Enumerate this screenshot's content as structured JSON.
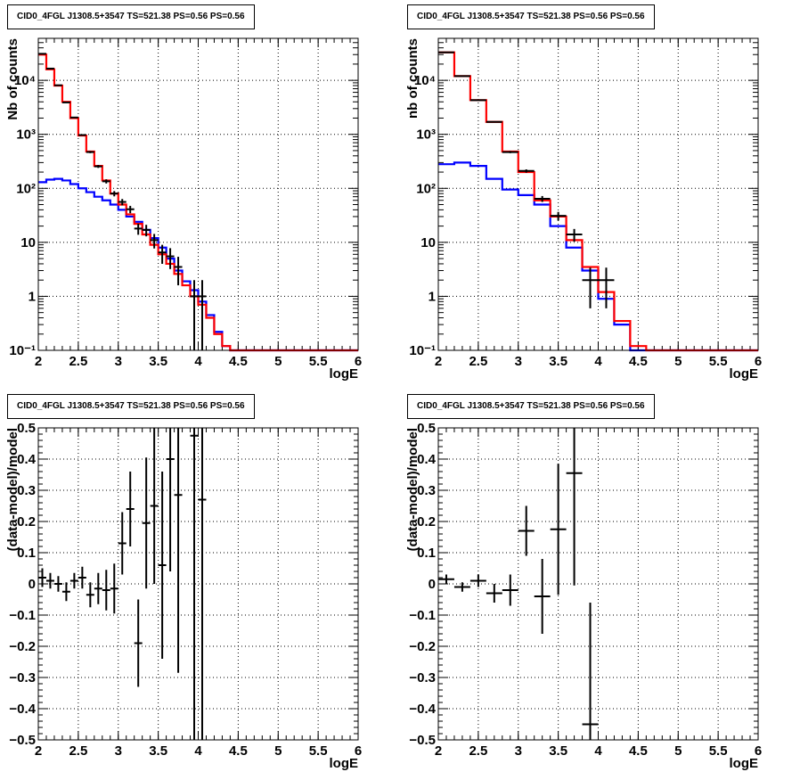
{
  "colors": {
    "data": "#000000",
    "total_model": "#ff0000",
    "component_model": "#0000ff",
    "grid": "#000000",
    "background": "#ffffff"
  },
  "chart_data": [
    {
      "type": "line",
      "title": "CID0_4FGL J1308.5+3547 TS=521.38 PS=0.56 PS=0.56",
      "xlabel": "logE",
      "ylabel": "Nb of counts",
      "xlim": [
        2,
        6
      ],
      "ylim": [
        0.1,
        60000
      ],
      "log_y": true,
      "grid": true,
      "x_ticks": [
        "2",
        "2.5",
        "3",
        "3.5",
        "4",
        "4.5",
        "5",
        "5.5",
        "6"
      ],
      "y_ticks": [
        {
          "value": 0.1,
          "label": "10⁻¹"
        },
        {
          "value": 1,
          "label": "1"
        },
        {
          "value": 10,
          "label": "10"
        },
        {
          "value": 100,
          "label": "10²"
        },
        {
          "value": 1000,
          "label": "10³"
        },
        {
          "value": 10000,
          "label": "10⁴"
        }
      ],
      "bin_edges": [
        2.0,
        2.1,
        2.2,
        2.3,
        2.4,
        2.5,
        2.6,
        2.7,
        2.8,
        2.9,
        3.0,
        3.1,
        3.2,
        3.3,
        3.4,
        3.5,
        3.6,
        3.7,
        3.8,
        3.9,
        4.0,
        4.1,
        4.2,
        4.3,
        4.4,
        4.5,
        4.6,
        4.7,
        4.8,
        4.9,
        5.0,
        5.1,
        5.2,
        5.3,
        5.4,
        5.5,
        5.6,
        5.7,
        5.8,
        5.9,
        6.0
      ],
      "series": [
        {
          "role": "total_model",
          "values": [
            30000,
            16000,
            8000,
            4000,
            2000,
            950,
            480,
            260,
            140,
            80,
            50,
            33,
            22,
            14,
            9,
            6,
            4,
            2.6,
            1.6,
            1.0,
            0.7,
            0.4,
            0.2,
            0.12,
            0.1,
            0.1,
            0.1,
            0.1,
            0.1,
            0.1,
            0.1,
            0.1,
            0.1,
            0.1,
            0.1,
            0.1,
            0.1,
            0.1,
            0.1,
            0.1
          ]
        },
        {
          "role": "component_model",
          "values": [
            130,
            145,
            150,
            140,
            120,
            100,
            85,
            70,
            60,
            50,
            40,
            30,
            24,
            17,
            12,
            8,
            5,
            3,
            1.9,
            1.3,
            0.8,
            0.45,
            0.22,
            0.12,
            0.1,
            0.1,
            0.1,
            0.1,
            0.1,
            0.1,
            0.1,
            0.1,
            0.1,
            0.1,
            0.1,
            0.1,
            0.1,
            0.1,
            0.1,
            0.1
          ]
        },
        {
          "role": "data",
          "points": [
            {
              "x": 2.05,
              "y": 31000,
              "err": 180
            },
            {
              "x": 2.15,
              "y": 16500,
              "err": 130
            },
            {
              "x": 2.25,
              "y": 8100,
              "err": 90
            },
            {
              "x": 2.35,
              "y": 3900,
              "err": 62
            },
            {
              "x": 2.45,
              "y": 2050,
              "err": 45
            },
            {
              "x": 2.55,
              "y": 970,
              "err": 31
            },
            {
              "x": 2.65,
              "y": 470,
              "err": 22
            },
            {
              "x": 2.75,
              "y": 255,
              "err": 16
            },
            {
              "x": 2.85,
              "y": 135,
              "err": 12
            },
            {
              "x": 2.95,
              "y": 80,
              "err": 9
            },
            {
              "x": 3.05,
              "y": 56,
              "err": 7.5
            },
            {
              "x": 3.15,
              "y": 41,
              "err": 6.4
            },
            {
              "x": 3.25,
              "y": 18,
              "err": 4.2
            },
            {
              "x": 3.35,
              "y": 17,
              "err": 4.1
            },
            {
              "x": 3.45,
              "y": 11,
              "err": 3.3
            },
            {
              "x": 3.55,
              "y": 6.5,
              "err": 2.5
            },
            {
              "x": 3.65,
              "y": 5.5,
              "err": 2.3
            },
            {
              "x": 3.75,
              "y": 3.5,
              "err": 1.9
            },
            {
              "x": 3.95,
              "y": 1,
              "err": 1
            },
            {
              "x": 4.05,
              "y": 1,
              "err": 1
            }
          ]
        }
      ]
    },
    {
      "type": "line",
      "title": "CID0_4FGL J1308.5+3547 TS=521.38 PS=0.56 PS=0.56",
      "xlabel": "logE",
      "ylabel": "nb of counts",
      "xlim": [
        2,
        6
      ],
      "ylim": [
        0.1,
        60000
      ],
      "log_y": true,
      "grid": true,
      "x_ticks": [
        "2",
        "2.5",
        "3",
        "3.5",
        "4",
        "4.5",
        "5",
        "5.5",
        "6"
      ],
      "y_ticks": [
        {
          "value": 0.1,
          "label": "10⁻¹"
        },
        {
          "value": 1,
          "label": "1"
        },
        {
          "value": 10,
          "label": "10"
        },
        {
          "value": 100,
          "label": "10²"
        },
        {
          "value": 1000,
          "label": "10³"
        },
        {
          "value": 10000,
          "label": "10⁴"
        }
      ],
      "bin_edges": [
        2.0,
        2.2,
        2.4,
        2.6,
        2.8,
        3.0,
        3.2,
        3.4,
        3.6,
        3.8,
        4.0,
        4.2,
        4.4,
        4.6,
        4.8,
        5.0,
        5.2,
        5.4,
        5.6,
        5.8,
        6.0
      ],
      "series": [
        {
          "role": "total_model",
          "values": [
            33000,
            12000,
            4300,
            1700,
            480,
            200,
            60,
            30,
            11,
            3.5,
            1.2,
            0.35,
            0.12,
            0.1,
            0.1,
            0.1,
            0.1,
            0.1,
            0.1,
            0.1
          ]
        },
        {
          "role": "component_model",
          "values": [
            280,
            300,
            260,
            150,
            95,
            75,
            50,
            20,
            8,
            3,
            0.9,
            0.3,
            0.1,
            0.1,
            0.1,
            0.1,
            0.1,
            0.1,
            0.1,
            0.1
          ]
        },
        {
          "role": "data",
          "points": [
            {
              "x": 2.1,
              "y": 33000,
              "err": 180
            },
            {
              "x": 2.3,
              "y": 12000,
              "err": 110
            },
            {
              "x": 2.5,
              "y": 4300,
              "err": 65
            },
            {
              "x": 2.7,
              "y": 1700,
              "err": 41
            },
            {
              "x": 2.9,
              "y": 470,
              "err": 22
            },
            {
              "x": 3.1,
              "y": 210,
              "err": 14.5
            },
            {
              "x": 3.3,
              "y": 64,
              "err": 8
            },
            {
              "x": 3.5,
              "y": 31,
              "err": 5.6
            },
            {
              "x": 3.7,
              "y": 14,
              "err": 3.7
            },
            {
              "x": 3.9,
              "y": 2,
              "err": 1.4
            },
            {
              "x": 4.1,
              "y": 2,
              "err": 1.4
            }
          ]
        }
      ]
    },
    {
      "type": "scatter",
      "title": "CID0_4FGL J1308.5+3547 TS=521.38 PS=0.56 PS=0.56",
      "xlabel": "logE",
      "ylabel": "(data-model)/model",
      "xlim": [
        2,
        6
      ],
      "ylim": [
        -0.5,
        0.5
      ],
      "grid": true,
      "x_ticks": [
        "2",
        "2.5",
        "3",
        "3.5",
        "4",
        "4.5",
        "5",
        "5.5",
        "6"
      ],
      "y_ticks": [
        "−0.5",
        "−0.4",
        "−0.3",
        "−0.2",
        "−0.1",
        "0",
        "0.1",
        "0.2",
        "0.3",
        "0.4",
        "0.5"
      ],
      "x_half_width": 0.05,
      "points": [
        {
          "x": 2.05,
          "y": 0.02,
          "err": 0.03
        },
        {
          "x": 2.15,
          "y": 0.01,
          "err": 0.025
        },
        {
          "x": 2.25,
          "y": 0.0,
          "err": 0.025
        },
        {
          "x": 2.35,
          "y": -0.025,
          "err": 0.03
        },
        {
          "x": 2.45,
          "y": 0.01,
          "err": 0.025
        },
        {
          "x": 2.55,
          "y": 0.02,
          "err": 0.035
        },
        {
          "x": 2.65,
          "y": -0.035,
          "err": 0.04
        },
        {
          "x": 2.75,
          "y": -0.015,
          "err": 0.05
        },
        {
          "x": 2.85,
          "y": -0.02,
          "err": 0.065
        },
        {
          "x": 2.95,
          "y": -0.015,
          "err": 0.08
        },
        {
          "x": 3.05,
          "y": 0.13,
          "err": 0.1
        },
        {
          "x": 3.15,
          "y": 0.24,
          "err": 0.12
        },
        {
          "x": 3.25,
          "y": -0.19,
          "err": 0.14
        },
        {
          "x": 3.35,
          "y": 0.195,
          "err": 0.21
        },
        {
          "x": 3.45,
          "y": 0.25,
          "err": 0.25
        },
        {
          "x": 3.55,
          "y": 0.06,
          "err": 0.3
        },
        {
          "x": 3.65,
          "y": 0.4,
          "err": 0.36
        },
        {
          "x": 3.75,
          "y": 0.285,
          "err": 0.57
        },
        {
          "x": 3.95,
          "y": 0.475,
          "err": 1.0
        },
        {
          "x": 4.05,
          "y": 0.27,
          "err": 1.0
        }
      ]
    },
    {
      "type": "scatter",
      "title": "CID0_4FGL J1308.5+3547 TS=521.38 PS=0.56 PS=0.56",
      "xlabel": "logE",
      "ylabel": "(data-model)/model",
      "xlim": [
        2,
        6
      ],
      "ylim": [
        -0.5,
        0.5
      ],
      "grid": true,
      "x_ticks": [
        "2",
        "2.5",
        "3",
        "3.5",
        "4",
        "4.5",
        "5",
        "5.5",
        "6"
      ],
      "y_ticks": [
        "−0.5",
        "−0.4",
        "−0.3",
        "−0.2",
        "−0.1",
        "0",
        "0.1",
        "0.2",
        "0.3",
        "0.4",
        "0.5"
      ],
      "x_half_width": 0.1,
      "points": [
        {
          "x": 2.1,
          "y": 0.015,
          "err": 0.015
        },
        {
          "x": 2.3,
          "y": -0.01,
          "err": 0.015
        },
        {
          "x": 2.5,
          "y": 0.01,
          "err": 0.02
        },
        {
          "x": 2.7,
          "y": -0.03,
          "err": 0.03
        },
        {
          "x": 2.9,
          "y": -0.02,
          "err": 0.05
        },
        {
          "x": 3.1,
          "y": 0.17,
          "err": 0.08
        },
        {
          "x": 3.3,
          "y": -0.04,
          "err": 0.12
        },
        {
          "x": 3.5,
          "y": 0.175,
          "err": 0.21
        },
        {
          "x": 3.7,
          "y": 0.355,
          "err": 0.36
        },
        {
          "x": 3.9,
          "y": -0.45,
          "err": 0.39
        }
      ]
    }
  ]
}
